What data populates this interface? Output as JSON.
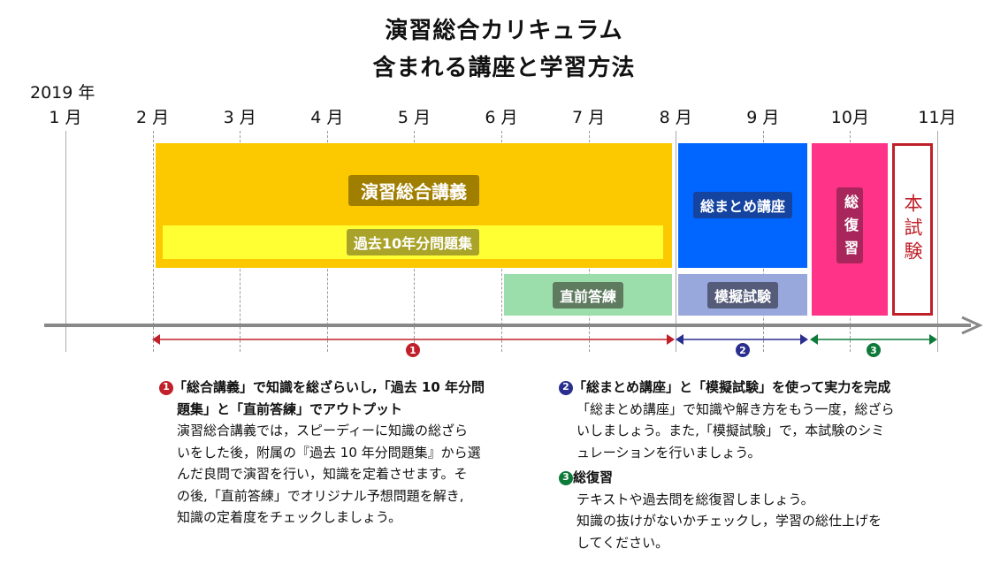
{
  "title": {
    "line1": "演習総合カリキュラム",
    "line2": "含まれる講座と学習方法"
  },
  "year": "2019 年",
  "months": [
    "1 月",
    "2 月",
    "3 月",
    "4 月",
    "5 月",
    "6 月",
    "7 月",
    "8 月",
    "9 月",
    "10月",
    "11月"
  ],
  "bars": {
    "main": {
      "label": "演習総合講義",
      "color": "#FCC800"
    },
    "past": {
      "label": "過去10年分問題集",
      "color": "#FFFF33"
    },
    "chokuzen": {
      "label": "直前答練",
      "color": "#9CDEAB"
    },
    "summary": {
      "label": "総まとめ講座",
      "color": "#0066FF"
    },
    "mock": {
      "label": "模擬試験",
      "color": "#98A8DC"
    },
    "review": {
      "label": "総復習",
      "color": "#FF3388"
    },
    "exam": {
      "label": "本試験",
      "color": "#C0202A"
    }
  },
  "phases": [
    {
      "num": "1",
      "color": "#C0202A"
    },
    {
      "num": "2",
      "color": "#2A2F8F"
    },
    {
      "num": "3",
      "color": "#0E7A3A"
    }
  ],
  "sections": {
    "s1": {
      "head1": "「総合講義」で知識を総ざらいし,「過去 10 年分問",
      "head2": "題集」と「直前答練」でアウトプット",
      "body": [
        "演習総合講義では，スピーディーに知識の総ざら",
        "いをした後，附属の『過去 10 年分問題集』から選",
        "んだ良問で演習を行い，知識を定着させます。そ",
        "の後,「直前答練」でオリジナル予想問題を解き,",
        "知識の定着度をチェックしましょう。"
      ]
    },
    "s2": {
      "head": "「総まとめ講座」と「模擬試験」を使って実力を完成",
      "body": [
        "「総まとめ講座」で知識や解き方をもう一度，総ざら",
        "いしましょう。また,「模擬試験」で，本試験のシミ",
        "ュレーションを行いましょう。"
      ]
    },
    "s3": {
      "head": "総復習",
      "body": [
        "テキストや過去問を総復習しましょう。",
        "知識の抜けがないかチェックし，学習の総仕上げを",
        "してください。"
      ]
    }
  }
}
